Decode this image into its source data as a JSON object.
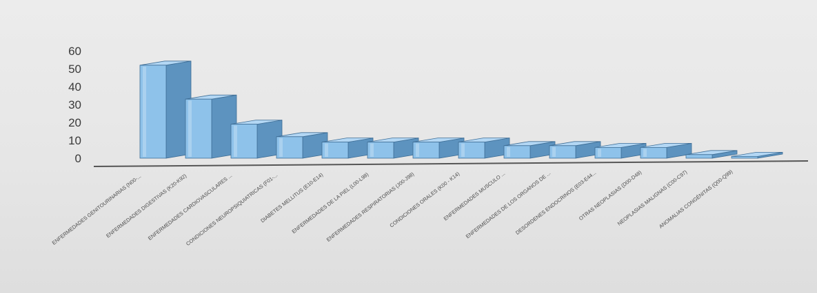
{
  "chart_data": {
    "type": "bar",
    "style": "3d-column",
    "categories": [
      "ENFERMEDADES GENITOURINARIAS (N00-...",
      "ENFERMEDADES DIGESTIVAS (K20-K92)",
      "ENFERMEDADES CARDIOVASCULARES ...",
      "CONDICIONES NEUROPSIQUIATRICAS (F01-...",
      "DIABETES MELLITUS (E10-E14)",
      "ENFERMEDADES DE LA PIEL (L00-L98)",
      "ENFERMEDADES RESPIRATORIAS (J00-J98)",
      "CONDICIONES ORALES (K00 - K14)",
      "ENFERMEDADES MUSCULO ...",
      "ENFERMEDADES DE LOS ORGANOS DE ...",
      "DESORDENES ENDOCRINOS (E03-E44...",
      "OTRAS NEOPLASIAS (D00-D48)",
      "NEOPLASIAS MALIGNAS (C00-C97)",
      "ANOMALIAS CONGÉNITAS (Q00-Q99)"
    ],
    "values": [
      52,
      33,
      19,
      12,
      9,
      9,
      9,
      9,
      7,
      7,
      6,
      6,
      2,
      1
    ],
    "ylim": [
      0,
      60
    ],
    "yticks": [
      "0",
      "10",
      "20",
      "30",
      "40",
      "50",
      "60"
    ],
    "title": "",
    "xlabel": "",
    "ylabel": "",
    "grid": false,
    "legend": "none",
    "colors": {
      "bar_front": "#8ec2ea",
      "bar_side": "#5d93bf",
      "bar_top": "#b3d7f4",
      "bar_stroke": "#3f6e96",
      "baseline": "#555555",
      "tick_text": "#3a3a3a"
    }
  }
}
